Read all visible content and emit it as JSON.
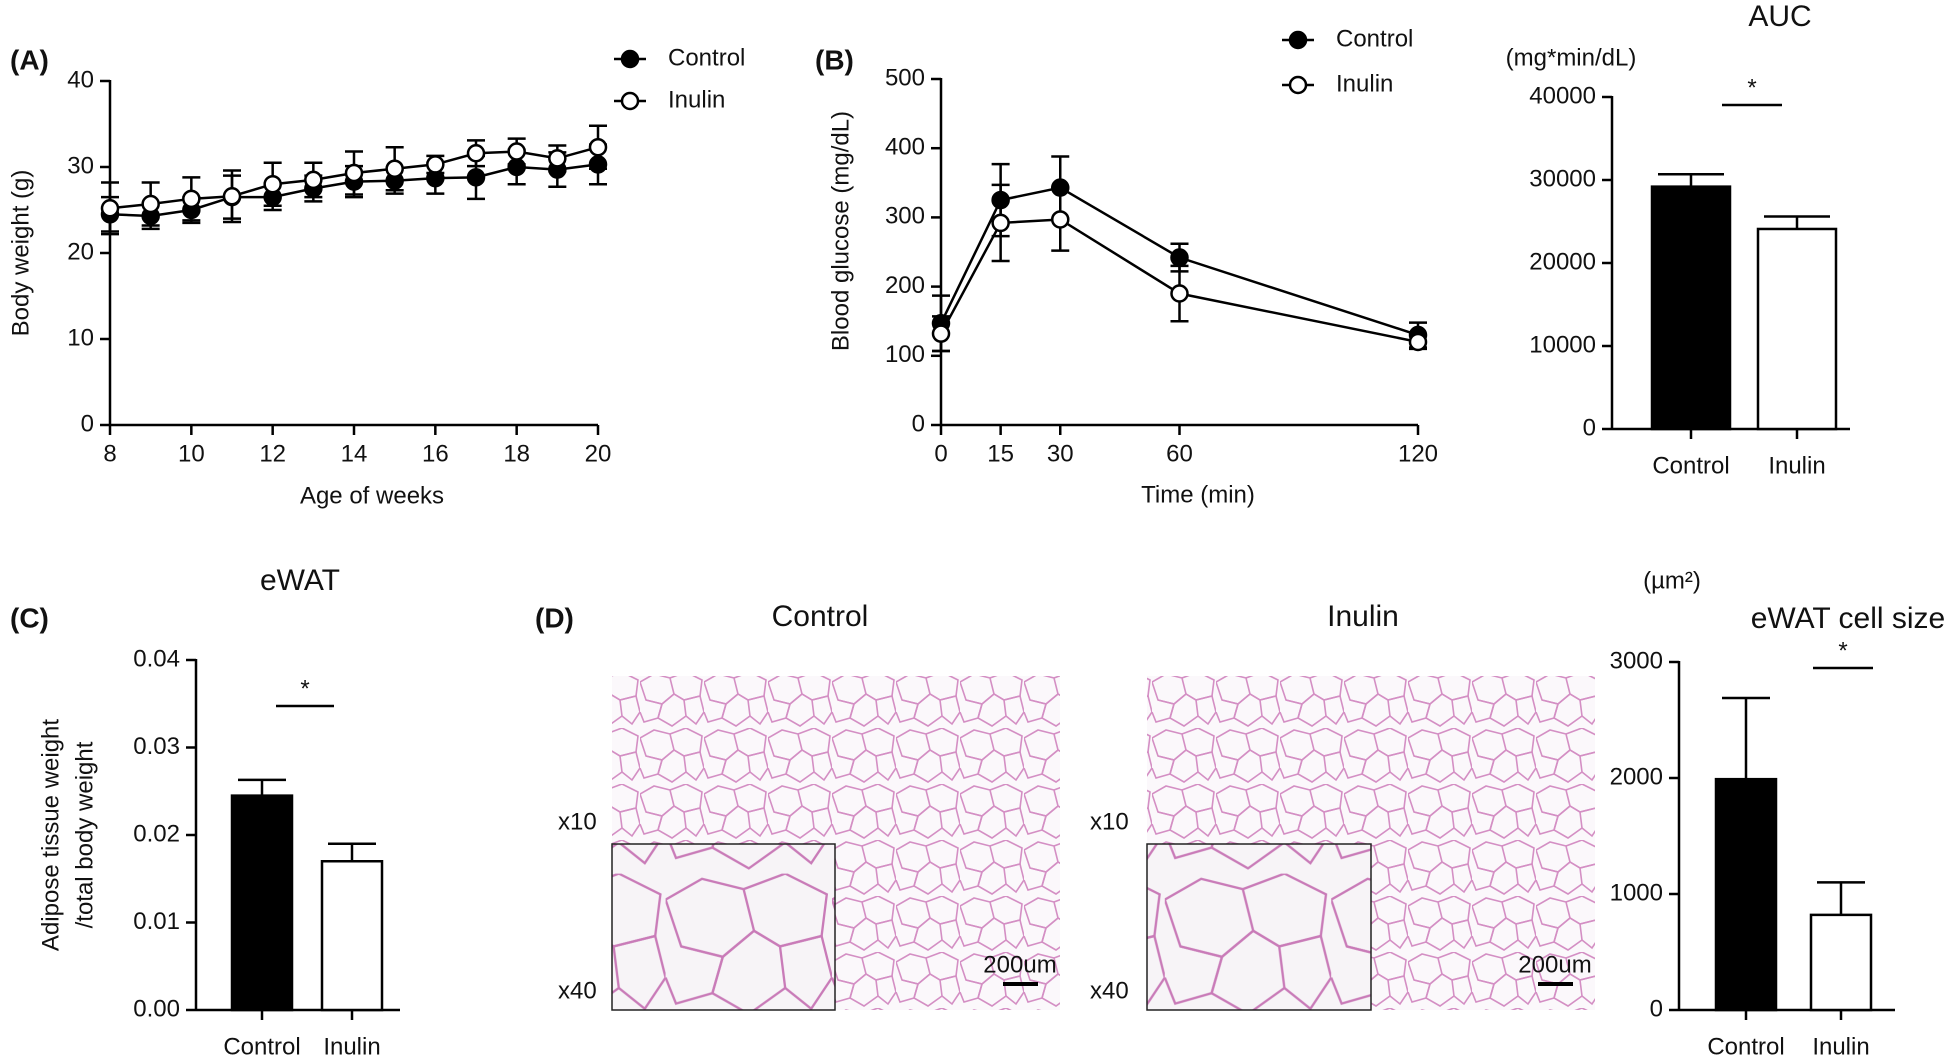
{
  "chart_data": [
    {
      "type": "line",
      "panel_label": "(A)",
      "xlabel": "Age of weeks",
      "ylabel": "Body weight (g)",
      "x": [
        8,
        9,
        10,
        11,
        12,
        13,
        14,
        15,
        16,
        17,
        18,
        19,
        20
      ],
      "xlim": [
        8,
        20
      ],
      "xticks": [
        8,
        10,
        12,
        14,
        16,
        18,
        20
      ],
      "ylim": [
        0,
        40
      ],
      "yticks": [
        0,
        10,
        20,
        30,
        40
      ],
      "series": [
        {
          "name": "Control",
          "color": "#000000",
          "marker_fill": "#000000",
          "values": [
            24.5,
            24.3,
            25,
            26.5,
            26.5,
            27.5,
            28.3,
            28.4,
            28.7,
            28.8,
            30,
            29.7,
            30.3
          ],
          "errors": [
            2,
            1.5,
            1.5,
            2.5,
            1.5,
            1.5,
            1.8,
            1.5,
            1.8,
            2.5,
            2,
            2,
            2.3
          ]
        },
        {
          "name": "Inulin",
          "color": "#000000",
          "marker_fill": "#ffffff",
          "values": [
            25.2,
            25.7,
            26.3,
            26.6,
            28,
            28.5,
            29.3,
            29.8,
            30.3,
            31.6,
            31.8,
            31,
            32.3
          ],
          "errors": [
            3,
            2.5,
            2.5,
            3,
            2.5,
            2,
            2.5,
            2.5,
            1,
            1.5,
            1.5,
            1.5,
            2.5
          ]
        }
      ]
    },
    {
      "type": "line",
      "panel_label": "(B)",
      "xlabel": "Time (min)",
      "ylabel": "Blood glucose (mg/dL)",
      "x": [
        0,
        15,
        30,
        60,
        120
      ],
      "xlim": [
        0,
        120
      ],
      "xticks": [
        0,
        15,
        30,
        60,
        120
      ],
      "ylim": [
        0,
        500
      ],
      "yticks": [
        0,
        100,
        200,
        300,
        400,
        500
      ],
      "series": [
        {
          "name": "Control",
          "color": "#000000",
          "marker_fill": "#000000",
          "values": [
            147,
            325,
            343,
            242,
            130
          ],
          "errors": [
            40,
            52,
            45,
            20,
            18
          ]
        },
        {
          "name": "Inulin",
          "color": "#000000",
          "marker_fill": "#ffffff",
          "values": [
            132,
            292,
            297,
            190,
            120
          ],
          "errors": [
            25,
            55,
            45,
            40,
            10
          ]
        }
      ]
    },
    {
      "type": "bar",
      "title": "AUC",
      "ylabel": "(mg*min/dL)",
      "annotation": "*",
      "categories": [
        "Control",
        "Inulin"
      ],
      "values": [
        29200,
        24100
      ],
      "errors": [
        1500,
        1500
      ],
      "colors": [
        "#000000",
        "#ffffff"
      ],
      "ylim": [
        0,
        40000
      ],
      "yticks": [
        0,
        10000,
        20000,
        30000,
        40000
      ]
    },
    {
      "type": "bar",
      "panel_label": "(C)",
      "title": "eWAT",
      "ylabel": [
        "Adipose tissue weight",
        "/total body weight"
      ],
      "annotation": "*",
      "categories": [
        "Control",
        "Inulin"
      ],
      "values": [
        0.0245,
        0.017
      ],
      "errors": [
        0.0018,
        0.002
      ],
      "colors": [
        "#000000",
        "#ffffff"
      ],
      "ylim": [
        0,
        0.04
      ],
      "yticks": [
        {
          "value": 0,
          "label": "0.00"
        },
        0.01,
        0.02,
        0.03,
        0.04
      ]
    },
    {
      "type": "bar",
      "title": "eWAT cell size",
      "ylabel": "(µm²)",
      "annotation": "*",
      "categories": [
        "Control",
        "Inulin"
      ],
      "values": [
        1990,
        820
      ],
      "errors": [
        700,
        280
      ],
      "colors": [
        "#000000",
        "#ffffff"
      ],
      "ylim": [
        0,
        3000
      ],
      "yticks": [
        0,
        1000,
        2000,
        3000
      ]
    }
  ],
  "micrographs": {
    "panel_label": "(D)",
    "images": [
      {
        "title": "Control",
        "magnifications": [
          "x10",
          "x40"
        ],
        "scale_bar": "200um"
      },
      {
        "title": "Inulin",
        "magnifications": [
          "x10",
          "x40"
        ],
        "scale_bar": "200um"
      }
    ]
  }
}
